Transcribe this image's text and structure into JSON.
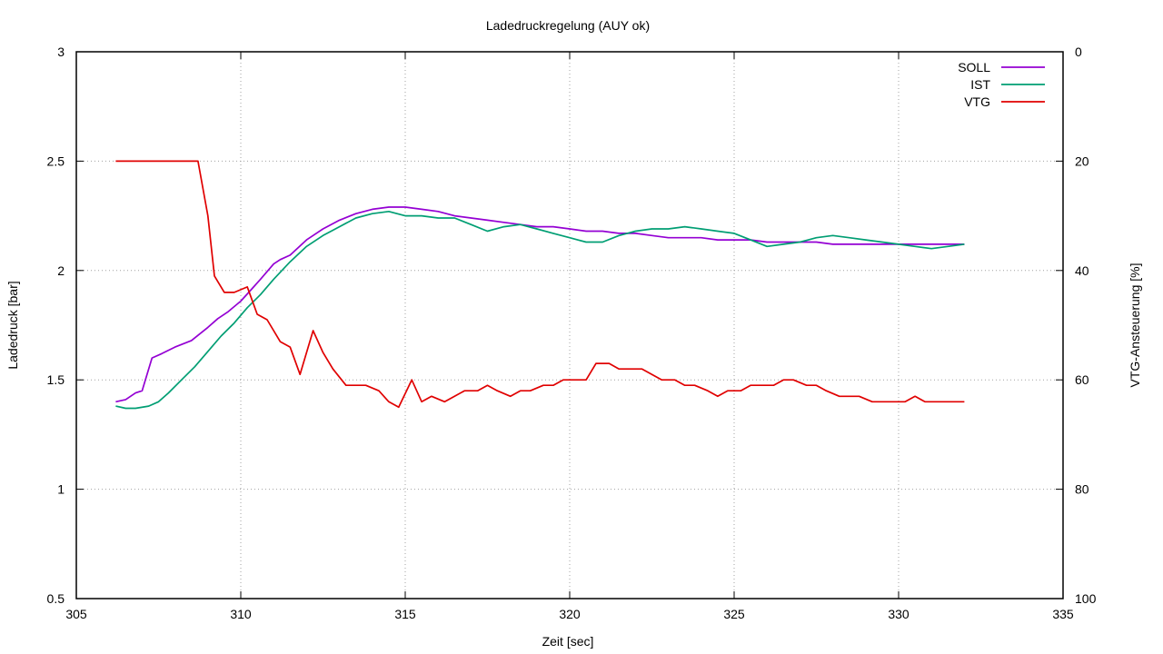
{
  "chart_data": {
    "type": "line",
    "title": "Ladedruckregelung (AUY ok)",
    "xlabel": "Zeit [sec]",
    "ylabel": "Ladedruck [bar]",
    "y2label": "VTG-Ansteuerung [%]",
    "xlim": [
      305,
      335
    ],
    "ylim": [
      0.5,
      3
    ],
    "y2lim": [
      100,
      0
    ],
    "y2_inverted": true,
    "grid": true,
    "legend_position": "top-right",
    "xticks": [
      "305",
      "310",
      "315",
      "320",
      "325",
      "330",
      "335"
    ],
    "yticks": [
      "0.5",
      "1",
      "1.5",
      "2",
      "2.5",
      "3"
    ],
    "y2ticks": [
      "100",
      "80",
      "60",
      "40",
      "20",
      "0"
    ],
    "series": [
      {
        "name": "SOLL",
        "axis": "y",
        "color": "#9400d3",
        "x": [
          306.2,
          306.5,
          306.8,
          307.0,
          307.3,
          307.6,
          308.0,
          308.5,
          309.0,
          309.3,
          309.6,
          310.0,
          310.3,
          310.6,
          311.0,
          311.2,
          311.5,
          312.0,
          312.5,
          313.0,
          313.5,
          314.0,
          314.5,
          315.0,
          315.5,
          316.0,
          316.5,
          317.0,
          317.5,
          318.0,
          318.5,
          319.0,
          319.5,
          320.0,
          320.5,
          321.0,
          321.5,
          322.0,
          322.5,
          323.0,
          323.5,
          324.0,
          324.5,
          325.0,
          325.5,
          326.0,
          326.5,
          327.0,
          327.5,
          328.0,
          328.5,
          329.0,
          329.5,
          330.0,
          330.5,
          331.0,
          331.5,
          332.0
        ],
        "values": [
          1.4,
          1.41,
          1.44,
          1.45,
          1.6,
          1.62,
          1.65,
          1.68,
          1.74,
          1.78,
          1.81,
          1.86,
          1.91,
          1.96,
          2.03,
          2.05,
          2.07,
          2.14,
          2.19,
          2.23,
          2.26,
          2.28,
          2.29,
          2.29,
          2.28,
          2.27,
          2.25,
          2.24,
          2.23,
          2.22,
          2.21,
          2.2,
          2.2,
          2.19,
          2.18,
          2.18,
          2.17,
          2.17,
          2.16,
          2.15,
          2.15,
          2.15,
          2.14,
          2.14,
          2.14,
          2.13,
          2.13,
          2.13,
          2.13,
          2.12,
          2.12,
          2.12,
          2.12,
          2.12,
          2.12,
          2.12,
          2.12,
          2.12
        ]
      },
      {
        "name": "IST",
        "axis": "y",
        "color": "#009e73",
        "x": [
          306.2,
          306.5,
          306.8,
          307.2,
          307.5,
          307.8,
          308.2,
          308.6,
          309.0,
          309.4,
          309.8,
          310.2,
          310.6,
          311.0,
          311.5,
          312.0,
          312.5,
          313.0,
          313.5,
          314.0,
          314.5,
          315.0,
          315.5,
          316.0,
          316.5,
          317.0,
          317.5,
          318.0,
          318.5,
          319.0,
          319.5,
          320.0,
          320.5,
          321.0,
          321.5,
          322.0,
          322.5,
          323.0,
          323.5,
          324.0,
          324.5,
          325.0,
          325.5,
          326.0,
          326.5,
          327.0,
          327.5,
          328.0,
          328.5,
          329.0,
          329.5,
          330.0,
          330.5,
          331.0,
          331.5,
          332.0
        ],
        "values": [
          1.38,
          1.37,
          1.37,
          1.38,
          1.4,
          1.44,
          1.5,
          1.56,
          1.63,
          1.7,
          1.76,
          1.83,
          1.89,
          1.96,
          2.04,
          2.11,
          2.16,
          2.2,
          2.24,
          2.26,
          2.27,
          2.25,
          2.25,
          2.24,
          2.24,
          2.21,
          2.18,
          2.2,
          2.21,
          2.19,
          2.17,
          2.15,
          2.13,
          2.13,
          2.16,
          2.18,
          2.19,
          2.19,
          2.2,
          2.19,
          2.18,
          2.17,
          2.14,
          2.11,
          2.12,
          2.13,
          2.15,
          2.16,
          2.15,
          2.14,
          2.13,
          2.12,
          2.11,
          2.1,
          2.11,
          2.12
        ]
      },
      {
        "name": "VTG",
        "axis": "y2",
        "color": "#e00000",
        "x": [
          306.2,
          306.5,
          307.0,
          307.5,
          308.0,
          308.3,
          308.5,
          308.7,
          309.0,
          309.2,
          309.5,
          309.8,
          310.2,
          310.5,
          310.8,
          311.2,
          311.5,
          311.8,
          312.2,
          312.5,
          312.8,
          313.2,
          313.5,
          313.8,
          314.2,
          314.5,
          314.8,
          315.2,
          315.5,
          315.8,
          316.2,
          316.5,
          316.8,
          317.2,
          317.5,
          317.8,
          318.2,
          318.5,
          318.8,
          319.2,
          319.5,
          319.8,
          320.2,
          320.5,
          320.8,
          321.2,
          321.5,
          321.8,
          322.2,
          322.5,
          322.8,
          323.2,
          323.5,
          323.8,
          324.2,
          324.5,
          324.8,
          325.2,
          325.5,
          325.8,
          326.2,
          326.5,
          326.8,
          327.2,
          327.5,
          327.8,
          328.2,
          328.5,
          328.8,
          329.2,
          329.5,
          329.8,
          330.2,
          330.5,
          330.8,
          331.2,
          331.5,
          331.8,
          332.0
        ],
        "values": [
          20,
          20,
          20,
          20,
          20,
          20,
          20,
          20,
          30,
          41,
          44,
          44,
          43,
          48,
          49,
          53,
          54,
          59,
          51,
          55,
          58,
          61,
          61,
          61,
          62,
          64,
          65,
          60,
          64,
          63,
          64,
          63,
          62,
          62,
          61,
          62,
          63,
          62,
          62,
          61,
          61,
          60,
          60,
          60,
          57,
          57,
          58,
          58,
          58,
          59,
          60,
          60,
          61,
          61,
          62,
          63,
          62,
          62,
          61,
          61,
          61,
          60,
          60,
          61,
          61,
          62,
          63,
          63,
          63,
          64,
          64,
          64,
          64,
          63,
          64,
          64,
          64,
          64,
          64
        ]
      }
    ]
  }
}
